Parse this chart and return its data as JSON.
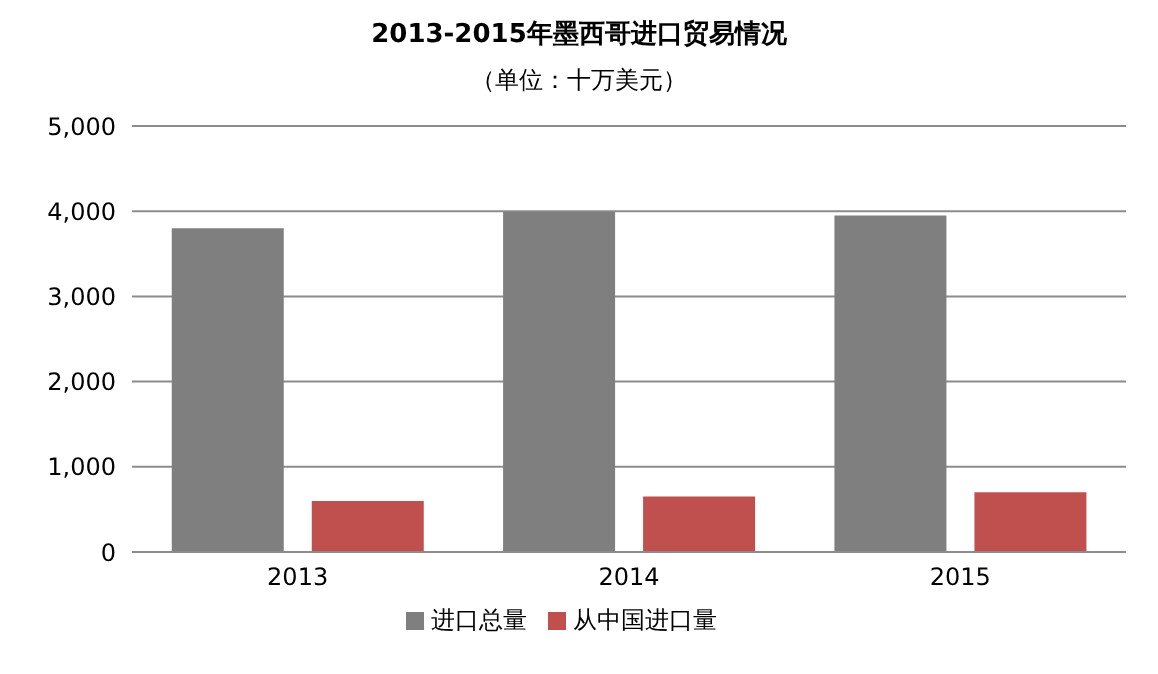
{
  "chart_data": {
    "type": "bar",
    "title": "2013-2015年墨西哥进口贸易情况",
    "subtitle": "（单位：十万美元）",
    "categories": [
      "2013",
      "2014",
      "2015"
    ],
    "series": [
      {
        "name": "进口总量",
        "color": "#7f7f7f",
        "values": [
          3800,
          3990,
          3950
        ]
      },
      {
        "name": "从中国进口量",
        "color": "#c0504d",
        "values": [
          600,
          650,
          700
        ]
      }
    ],
    "ylim": [
      0,
      5000
    ],
    "yticks": [
      {
        "value": 0,
        "label": "0"
      },
      {
        "value": 1000,
        "label": "1,000"
      },
      {
        "value": 2000,
        "label": "2,000"
      },
      {
        "value": 3000,
        "label": "3,000"
      },
      {
        "value": 4000,
        "label": "4,000"
      },
      {
        "value": 5000,
        "label": "5,000"
      }
    ],
    "grid": "y",
    "legend": "bottom"
  }
}
